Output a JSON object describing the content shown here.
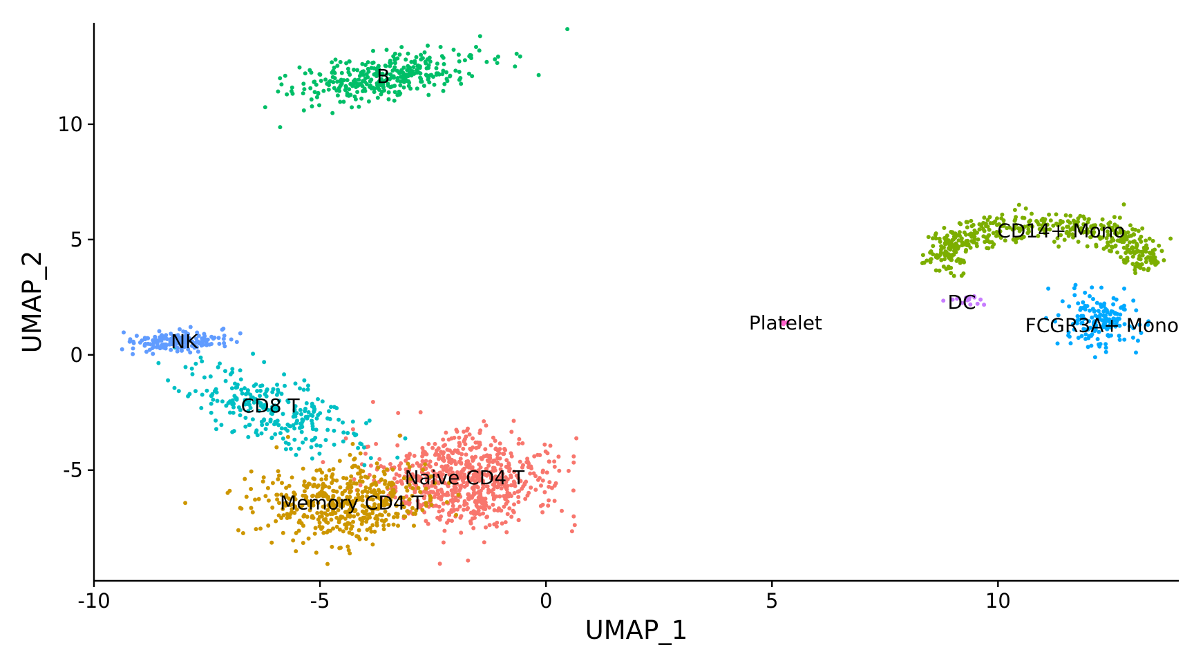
{
  "chart_data": {
    "type": "scatter",
    "title": "",
    "xlabel": "UMAP_1",
    "ylabel": "UMAP_2",
    "xlim": [
      -10,
      14
    ],
    "ylim": [
      -9.8,
      14.4
    ],
    "x_ticks": [
      {
        "value": -10,
        "label": "-10"
      },
      {
        "value": -5,
        "label": "-5"
      },
      {
        "value": 0,
        "label": "0"
      },
      {
        "value": 5,
        "label": "5"
      },
      {
        "value": 10,
        "label": "10"
      }
    ],
    "y_ticks": [
      {
        "value": -5,
        "label": "-5"
      },
      {
        "value": 0,
        "label": "0"
      },
      {
        "value": 5,
        "label": "5"
      },
      {
        "value": 10,
        "label": "10"
      }
    ],
    "grid": false,
    "legend": "none",
    "clusters": [
      {
        "name": "Naive CD4 T",
        "color": "#F8766D",
        "label_pos": [
          -1.8,
          -5.3
        ],
        "center": [
          -1.8,
          -5.4
        ],
        "spread": [
          0.95,
          0.95
        ],
        "n": 720
      },
      {
        "name": "Memory CD4 T",
        "color": "#CD9600",
        "label_pos": [
          -4.3,
          -6.4
        ],
        "center": [
          -4.5,
          -6.4
        ],
        "spread": [
          0.95,
          0.85
        ],
        "n": 480
      },
      {
        "name": "CD14+ Mono",
        "color": "#7CAE00",
        "label_pos": [
          11.4,
          5.4
        ],
        "center": [
          11.0,
          5.2
        ],
        "spread": [
          1.3,
          0.7
        ],
        "n": 480
      },
      {
        "name": "B",
        "color": "#00BE67",
        "label_pos": [
          -3.6,
          12.1
        ],
        "center": [
          -3.5,
          12.1
        ],
        "spread": [
          1.05,
          0.5
        ],
        "n": 340
      },
      {
        "name": "CD8 T",
        "color": "#00BFC4",
        "label_pos": [
          -6.1,
          -2.2
        ],
        "center": [
          -6.0,
          -2.4
        ],
        "spread": [
          0.75,
          0.9
        ],
        "n": 270
      },
      {
        "name": "FCGR3A+ Mono",
        "color": "#00A9FF",
        "label_pos": [
          12.3,
          1.3
        ],
        "center": [
          12.2,
          1.5
        ],
        "spread": [
          0.4,
          0.55
        ],
        "n": 160
      },
      {
        "name": "NK",
        "color": "#619CFF",
        "label_pos": [
          -8.0,
          0.6
        ],
        "center": [
          -8.2,
          0.6
        ],
        "spread": [
          0.55,
          0.22
        ],
        "n": 160
      },
      {
        "name": "DC",
        "color": "#C77CFF",
        "label_pos": [
          9.2,
          2.3
        ],
        "center": [
          9.3,
          2.4
        ],
        "spread": [
          0.25,
          0.15
        ],
        "n": 14
      },
      {
        "name": "Platelet",
        "color": "#FF61CC",
        "label_pos": [
          5.3,
          1.4
        ],
        "center": [
          5.25,
          1.42
        ],
        "spread": [
          0.05,
          0.04
        ],
        "n": 4
      }
    ]
  }
}
